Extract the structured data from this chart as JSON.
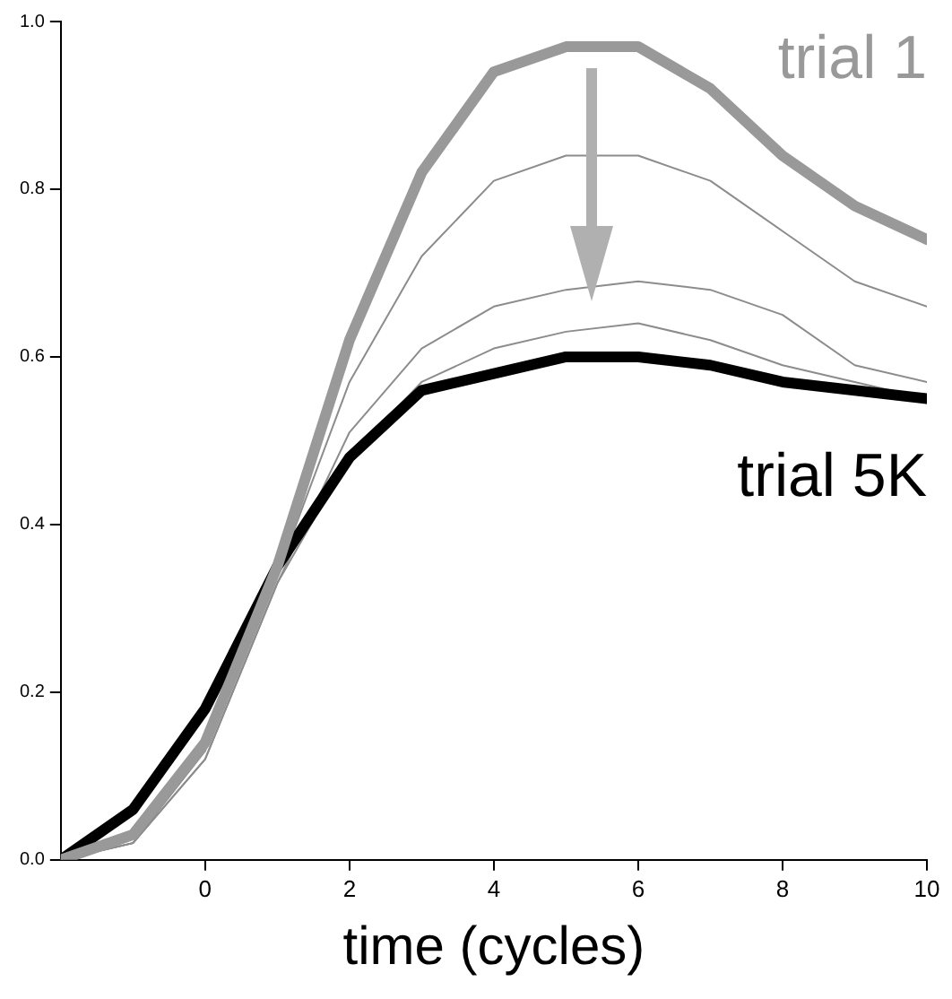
{
  "chart_data": {
    "type": "line",
    "xlabel": "time (cycles)",
    "x": [
      -2,
      -1,
      0,
      1,
      2,
      3,
      4,
      5,
      6,
      7,
      8,
      9,
      10
    ],
    "series": [
      {
        "name": "trial 1",
        "color": "#999999",
        "values": [
          0,
          0.03,
          0.14,
          0.35,
          0.62,
          0.82,
          0.94,
          0.97,
          0.97,
          0.92,
          0.84,
          0.78,
          0.74
        ]
      },
      {
        "color": "#8c8c8c",
        "values": [
          0,
          0.02,
          0.13,
          0.34,
          0.57,
          0.72,
          0.81,
          0.84,
          0.84,
          0.81,
          0.75,
          0.69,
          0.66
        ]
      },
      {
        "color": "#8c8c8c",
        "values": [
          0,
          0.02,
          0.12,
          0.33,
          0.51,
          0.61,
          0.66,
          0.68,
          0.69,
          0.68,
          0.65,
          0.59,
          0.57
        ]
      },
      {
        "color": "#8c8c8c",
        "values": [
          0,
          0.02,
          0.12,
          0.33,
          0.48,
          0.57,
          0.61,
          0.63,
          0.64,
          0.62,
          0.59,
          0.57,
          0.55
        ]
      },
      {
        "name": "trial 5K",
        "color": "#000000",
        "values": [
          0,
          0.06,
          0.18,
          0.35,
          0.48,
          0.56,
          0.58,
          0.6,
          0.6,
          0.59,
          0.57,
          0.56,
          0.55
        ]
      }
    ],
    "xlim": [
      -2,
      10
    ],
    "xticks": [
      0,
      2,
      4,
      6,
      8,
      10
    ],
    "ylim": [
      0,
      1
    ],
    "yticks": [
      {
        "value": 0,
        "label": "0.0"
      },
      {
        "value": 0.2,
        "label": "0.2"
      },
      {
        "value": 0.4,
        "label": "0.4"
      },
      {
        "value": 0.6,
        "label": "0.6"
      },
      {
        "value": 0.8,
        "label": "0.8"
      },
      {
        "value": 1,
        "label": "1.0"
      }
    ],
    "grid": false,
    "legend": false,
    "marker": "none",
    "line_style": "solid"
  }
}
